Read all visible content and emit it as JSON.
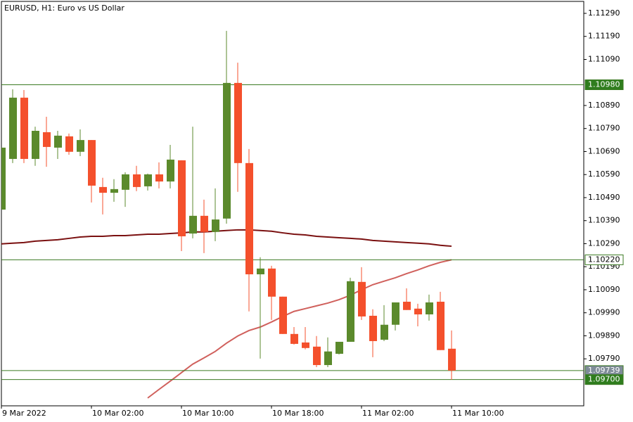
{
  "chart_data": {
    "type": "candlestick",
    "title": "EURUSD, H1:  Euro vs US Dollar",
    "categories": [
      "9 Mar 2022",
      null,
      null,
      null,
      null,
      null,
      null,
      null,
      "10 Mar 02:00",
      null,
      null,
      null,
      null,
      null,
      null,
      null,
      "10 Mar 10:00",
      null,
      null,
      null,
      null,
      null,
      null,
      null,
      "10 Mar 18:00",
      null,
      null,
      null,
      null,
      null,
      null,
      null,
      "11 Mar 02:00",
      null,
      null,
      null,
      null,
      null,
      null,
      null,
      "11 Mar 10:00"
    ],
    "open": [
      1.10438,
      1.10658,
      1.10924,
      1.10658,
      1.10774,
      1.10707,
      1.10756,
      1.10689,
      1.1074,
      1.10536,
      1.10511,
      1.10524,
      1.10591,
      1.10539,
      1.10591,
      1.1056,
      1.10652,
      1.10334,
      1.10411,
      1.10341,
      1.10399,
      1.10988,
      1.1064,
      1.10157,
      1.10182,
      1.1006,
      1.09898,
      1.09861,
      1.09843,
      1.09763,
      1.09812,
      1.09864,
      1.10124,
      1.09977,
      1.09873,
      1.09938,
      1.10038,
      1.10008,
      1.09983,
      1.10038,
      1.09834
    ],
    "high": [
      1.10707,
      1.1096,
      1.10957,
      1.10798,
      1.10841,
      1.1078,
      1.10768,
      1.10786,
      1.1074,
      1.10576,
      1.1057,
      1.106,
      1.10628,
      1.10594,
      1.10643,
      1.10719,
      1.10652,
      1.10798,
      1.10481,
      1.1053,
      1.11214,
      1.11076,
      1.10701,
      1.10231,
      1.10194,
      1.1006,
      1.09928,
      1.09928,
      1.09889,
      1.09883,
      1.09864,
      1.10142,
      1.10188,
      1.10005,
      1.10023,
      1.10035,
      1.10096,
      1.10029,
      1.10069,
      1.10081,
      1.09913
    ],
    "low": [
      1.10438,
      1.1064,
      1.1064,
      1.10628,
      1.10624,
      1.10658,
      1.10676,
      1.1067,
      1.10469,
      1.10417,
      1.10472,
      1.1045,
      1.10518,
      1.10521,
      1.1053,
      1.1053,
      1.10258,
      1.10313,
      1.10249,
      1.10301,
      1.10377,
      1.10515,
      1.09996,
      1.09791,
      1.09959,
      1.09898,
      1.09852,
      1.09831,
      1.09754,
      1.09754,
      1.09809,
      1.09864,
      1.09959,
      1.09797,
      1.09867,
      1.09913,
      1.10002,
      1.09931,
      1.09956,
      1.09828,
      1.09699
    ],
    "close": [
      1.10707,
      1.10924,
      1.10658,
      1.1078,
      1.1071,
      1.10759,
      1.10689,
      1.1074,
      1.10542,
      1.10511,
      1.10527,
      1.10591,
      1.10536,
      1.10591,
      1.1056,
      1.10655,
      1.10322,
      1.10411,
      1.10341,
      1.10395,
      1.10988,
      1.1064,
      1.10157,
      1.10182,
      1.1006,
      1.09898,
      1.09855,
      1.09837,
      1.09763,
      1.09822,
      1.09864,
      1.10127,
      1.09974,
      1.09867,
      1.09938,
      1.10035,
      1.10002,
      1.09983,
      1.10035,
      1.09828,
      1.09739
    ],
    "up_color": "#5b8a2c",
    "down_color": "#f4502c",
    "series": [
      {
        "color": "#7a1010",
        "values": [
          1.10289,
          1.10292,
          1.10295,
          1.10301,
          1.10304,
          1.10307,
          1.10313,
          1.10319,
          1.10322,
          1.10322,
          1.10325,
          1.10325,
          1.10328,
          1.10331,
          1.10331,
          1.10334,
          1.10337,
          1.10341,
          1.10341,
          1.10344,
          1.10347,
          1.1035,
          1.1035,
          1.10347,
          1.10344,
          1.10337,
          1.10331,
          1.10328,
          1.10322,
          1.10319,
          1.10316,
          1.10313,
          1.1031,
          1.10304,
          1.10301,
          1.10298,
          1.10295,
          1.10292,
          1.10289,
          1.10283,
          1.10279
        ]
      },
      {
        "color": "#d0605c",
        "values": [
          null,
          null,
          null,
          null,
          null,
          null,
          null,
          null,
          null,
          null,
          null,
          null,
          null,
          1.0962,
          1.09657,
          1.09693,
          1.0973,
          1.09767,
          1.09794,
          1.09822,
          1.09858,
          1.09889,
          1.09913,
          1.09928,
          1.0995,
          1.09974,
          1.09996,
          1.10008,
          1.1002,
          1.10032,
          1.10047,
          1.10066,
          1.1009,
          1.10112,
          1.10127,
          1.10142,
          1.1016,
          1.10176,
          1.10194,
          1.10209,
          1.1022
        ]
      }
    ],
    "levels": [
      {
        "value": 1.1098,
        "label": "1.10980",
        "color": "#3b7a22",
        "label_fill": "#2f7d1e",
        "label_text": "#ffffff"
      },
      {
        "value": 1.1022,
        "label": "1.10220",
        "color": "#3b7a22",
        "label_fill": "#ffffff",
        "label_text": "#000000"
      },
      {
        "value": 1.09739,
        "label": "1.09739",
        "color": "#3b7a22",
        "label_fill": "#7f8c99",
        "label_text": "#ffffff"
      },
      {
        "value": 1.097,
        "label": "1.09700",
        "color": "#3b7a22",
        "label_fill": "#2f7d1e",
        "label_text": "#ffffff"
      }
    ],
    "ylim": [
      1.09586,
      1.11348
    ],
    "yticks": [
      {
        "value": 1.1129,
        "label": "1.11290"
      },
      {
        "value": 1.1119,
        "label": "1.11190"
      },
      {
        "value": 1.1109,
        "label": "1.11090"
      },
      {
        "value": 1.1089,
        "label": "1.10890"
      },
      {
        "value": 1.1079,
        "label": "1.10790"
      },
      {
        "value": 1.1069,
        "label": "1.10690"
      },
      {
        "value": 1.1059,
        "label": "1.10590"
      },
      {
        "value": 1.1049,
        "label": "1.10490"
      },
      {
        "value": 1.1039,
        "label": "1.10390"
      },
      {
        "value": 1.1029,
        "label": "1.10290"
      },
      {
        "value": 1.1019,
        "label": "1.10190"
      },
      {
        "value": 1.1009,
        "label": "1.10090"
      },
      {
        "value": 1.0999,
        "label": "1.09990"
      },
      {
        "value": 1.0989,
        "label": "1.09890"
      },
      {
        "value": 1.0979,
        "label": "1.09790"
      }
    ]
  }
}
